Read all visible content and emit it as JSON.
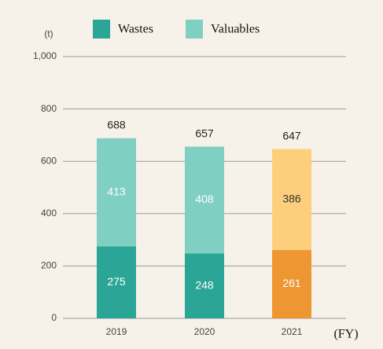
{
  "chart_data": {
    "type": "stacked_bar",
    "y_unit": "(t)",
    "x_unit": "(FY)",
    "categories": [
      "2019",
      "2020",
      "2021"
    ],
    "series": [
      {
        "name": "Wastes",
        "color": "#2aa596",
        "colors": [
          "#2aa596",
          "#2aa596",
          "#ee9632"
        ],
        "values": [
          275,
          248,
          261
        ]
      },
      {
        "name": "Valuables",
        "color": "#80cfc3",
        "colors": [
          "#80cfc3",
          "#80cfc3",
          "#fdcf7c"
        ],
        "values": [
          413,
          408,
          386
        ]
      }
    ],
    "totals": [
      688,
      657,
      647
    ],
    "ylim": [
      0,
      1000
    ],
    "yticks": [
      0,
      200,
      400,
      600,
      800,
      {
        "value": 1000,
        "label": "1,000"
      }
    ],
    "grid": true
  }
}
